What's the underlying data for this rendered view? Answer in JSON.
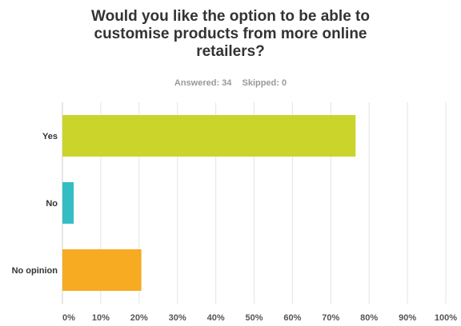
{
  "title_lines": [
    "Would you like the option to be able to",
    "customise products from more online",
    "retailers?"
  ],
  "stats": {
    "answered": "Answered: 34",
    "skipped": "Skipped: 0"
  },
  "chart_data": {
    "type": "bar",
    "orientation": "horizontal",
    "categories": [
      "Yes",
      "No",
      "No opinion"
    ],
    "values": [
      76.47,
      2.94,
      20.59
    ],
    "colors": [
      "#cbd42a",
      "#34bec3",
      "#f6ab22"
    ],
    "xlim": [
      0,
      100
    ],
    "xticks": [
      "0%",
      "10%",
      "20%",
      "30%",
      "40%",
      "50%",
      "60%",
      "70%",
      "80%",
      "90%",
      "100%"
    ],
    "grid": true,
    "title": "Would you like the option to be able to customise products from more online retailers?"
  }
}
